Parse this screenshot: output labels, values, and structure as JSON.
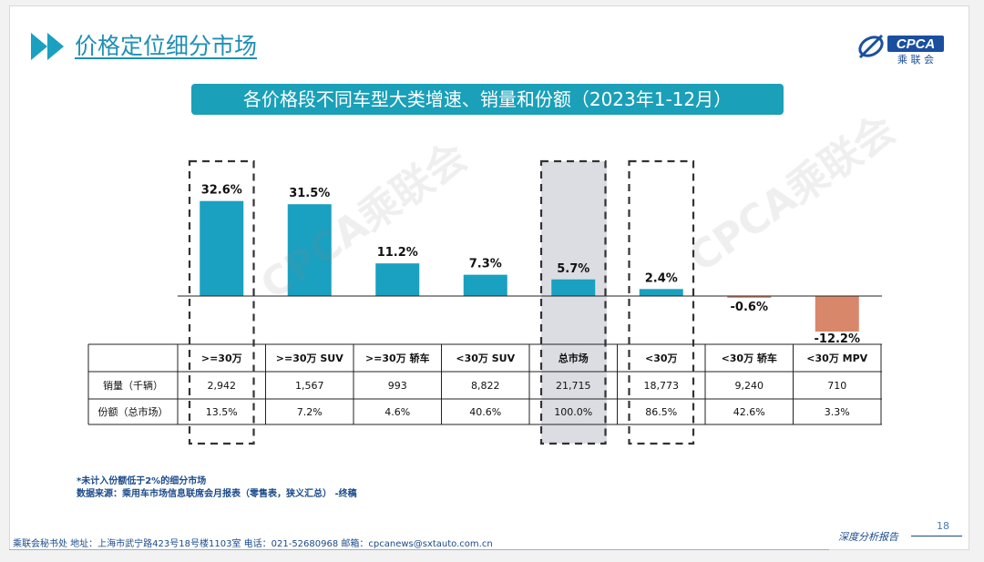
{
  "header": {
    "title": "价格定位细分市场",
    "logo_text": "CPCA",
    "logo_subtext": "乘 联 会"
  },
  "chart_data": {
    "type": "bar",
    "title": "各价格段不同车型大类增速、销量和份额（2023年1-12月）",
    "categories": [
      ">=30万",
      ">=30万 SUV",
      ">=30万 轿车",
      "<30万 SUV",
      "总市场",
      "<30万",
      "<30万 轿车",
      "<30万 MPV"
    ],
    "series": [
      {
        "values": [
          32.6,
          31.5,
          11.2,
          7.3,
          5.7,
          2.4,
          -0.6,
          -12.2
        ]
      }
    ],
    "value_labels": [
      "32.6%",
      "31.5%",
      "11.2%",
      "7.3%",
      "5.7%",
      "2.4%",
      "-0.6%",
      "-12.2%"
    ],
    "colors": {
      "positive": "#1aa0c0",
      "negative": "#d9876a",
      "highlight_box": "#333333",
      "market_shade": "#dcdde3"
    },
    "highlighted_columns": [
      0,
      4,
      5
    ],
    "table": {
      "rows": [
        {
          "label": "销量（千辆）",
          "values": [
            "2,942",
            "1,567",
            "993",
            "8,822",
            "21,715",
            "18,773",
            "9,240",
            "710"
          ]
        },
        {
          "label": "份额（总市场）",
          "values": [
            "13.5%",
            "7.2%",
            "4.6%",
            "40.6%",
            "100.0%",
            "86.5%",
            "42.6%",
            "3.3%"
          ]
        }
      ],
      "header_labels": [
        ">=30万",
        ">=30万 SUV",
        ">=30万 轿车",
        "<30万 SUV",
        "总市场",
        "<30万",
        "<30万 轿车",
        "<30万 MPV"
      ]
    },
    "watermark": "CPCA乘联会"
  },
  "notes": {
    "line1": "*未计入份额低于2%的细分市场",
    "line2": "数据来源：乘用车市场信息联席会月报表（零售表，狭义汇总） -终稿"
  },
  "footer": {
    "address": "乘联会秘书处   地址：上海市武宁路423号18号楼1103室   电话：021-52680968   邮箱：cpcanews@sxtauto.com.cn",
    "report_label": "深度分析报告",
    "page_number": "18"
  }
}
